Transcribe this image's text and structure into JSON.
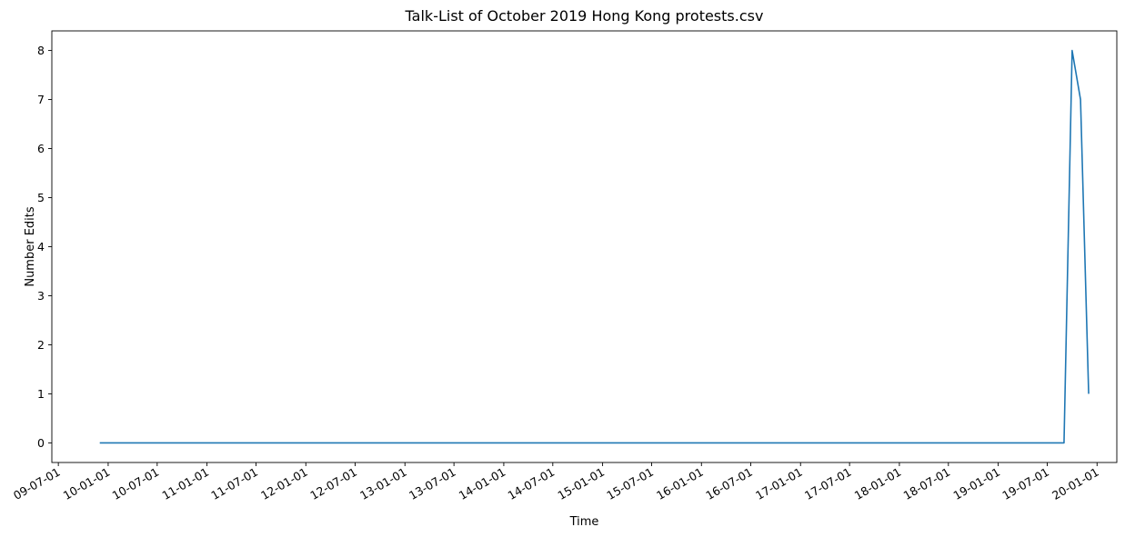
{
  "chart_data": {
    "type": "line",
    "title": "Talk-List of October 2019 Hong Kong protests.csv",
    "xlabel": "Time",
    "ylabel": "Number Edits",
    "xlim": [
      "2009-06-07",
      "2020-03-14"
    ],
    "ylim": [
      -0.4,
      8.4
    ],
    "yticks": [
      0,
      1,
      2,
      3,
      4,
      5,
      6,
      7,
      8
    ],
    "xticks": [
      {
        "date": "2009-07-01",
        "label": "09-07-01"
      },
      {
        "date": "2010-01-01",
        "label": "10-01-01"
      },
      {
        "date": "2010-07-01",
        "label": "10-07-01"
      },
      {
        "date": "2011-01-01",
        "label": "11-01-01"
      },
      {
        "date": "2011-07-01",
        "label": "11-07-01"
      },
      {
        "date": "2012-01-01",
        "label": "12-01-01"
      },
      {
        "date": "2012-07-01",
        "label": "12-07-01"
      },
      {
        "date": "2013-01-01",
        "label": "13-01-01"
      },
      {
        "date": "2013-07-01",
        "label": "13-07-01"
      },
      {
        "date": "2014-01-01",
        "label": "14-01-01"
      },
      {
        "date": "2014-07-01",
        "label": "14-07-01"
      },
      {
        "date": "2015-01-01",
        "label": "15-01-01"
      },
      {
        "date": "2015-07-01",
        "label": "15-07-01"
      },
      {
        "date": "2016-01-01",
        "label": "16-01-01"
      },
      {
        "date": "2016-07-01",
        "label": "16-07-01"
      },
      {
        "date": "2017-01-01",
        "label": "17-01-01"
      },
      {
        "date": "2017-07-01",
        "label": "17-07-01"
      },
      {
        "date": "2018-01-01",
        "label": "18-01-01"
      },
      {
        "date": "2018-07-01",
        "label": "18-07-01"
      },
      {
        "date": "2019-01-01",
        "label": "19-01-01"
      },
      {
        "date": "2019-07-01",
        "label": "19-07-01"
      },
      {
        "date": "2020-01-01",
        "label": "20-01-01"
      }
    ],
    "series": [
      {
        "color": "#1f77b4",
        "x": [
          "2009-12-01",
          "2019-09-01",
          "2019-10-01",
          "2019-11-01",
          "2019-12-01"
        ],
        "y": [
          0,
          0,
          8,
          7,
          1
        ]
      }
    ],
    "grid": false,
    "legend": "none"
  }
}
